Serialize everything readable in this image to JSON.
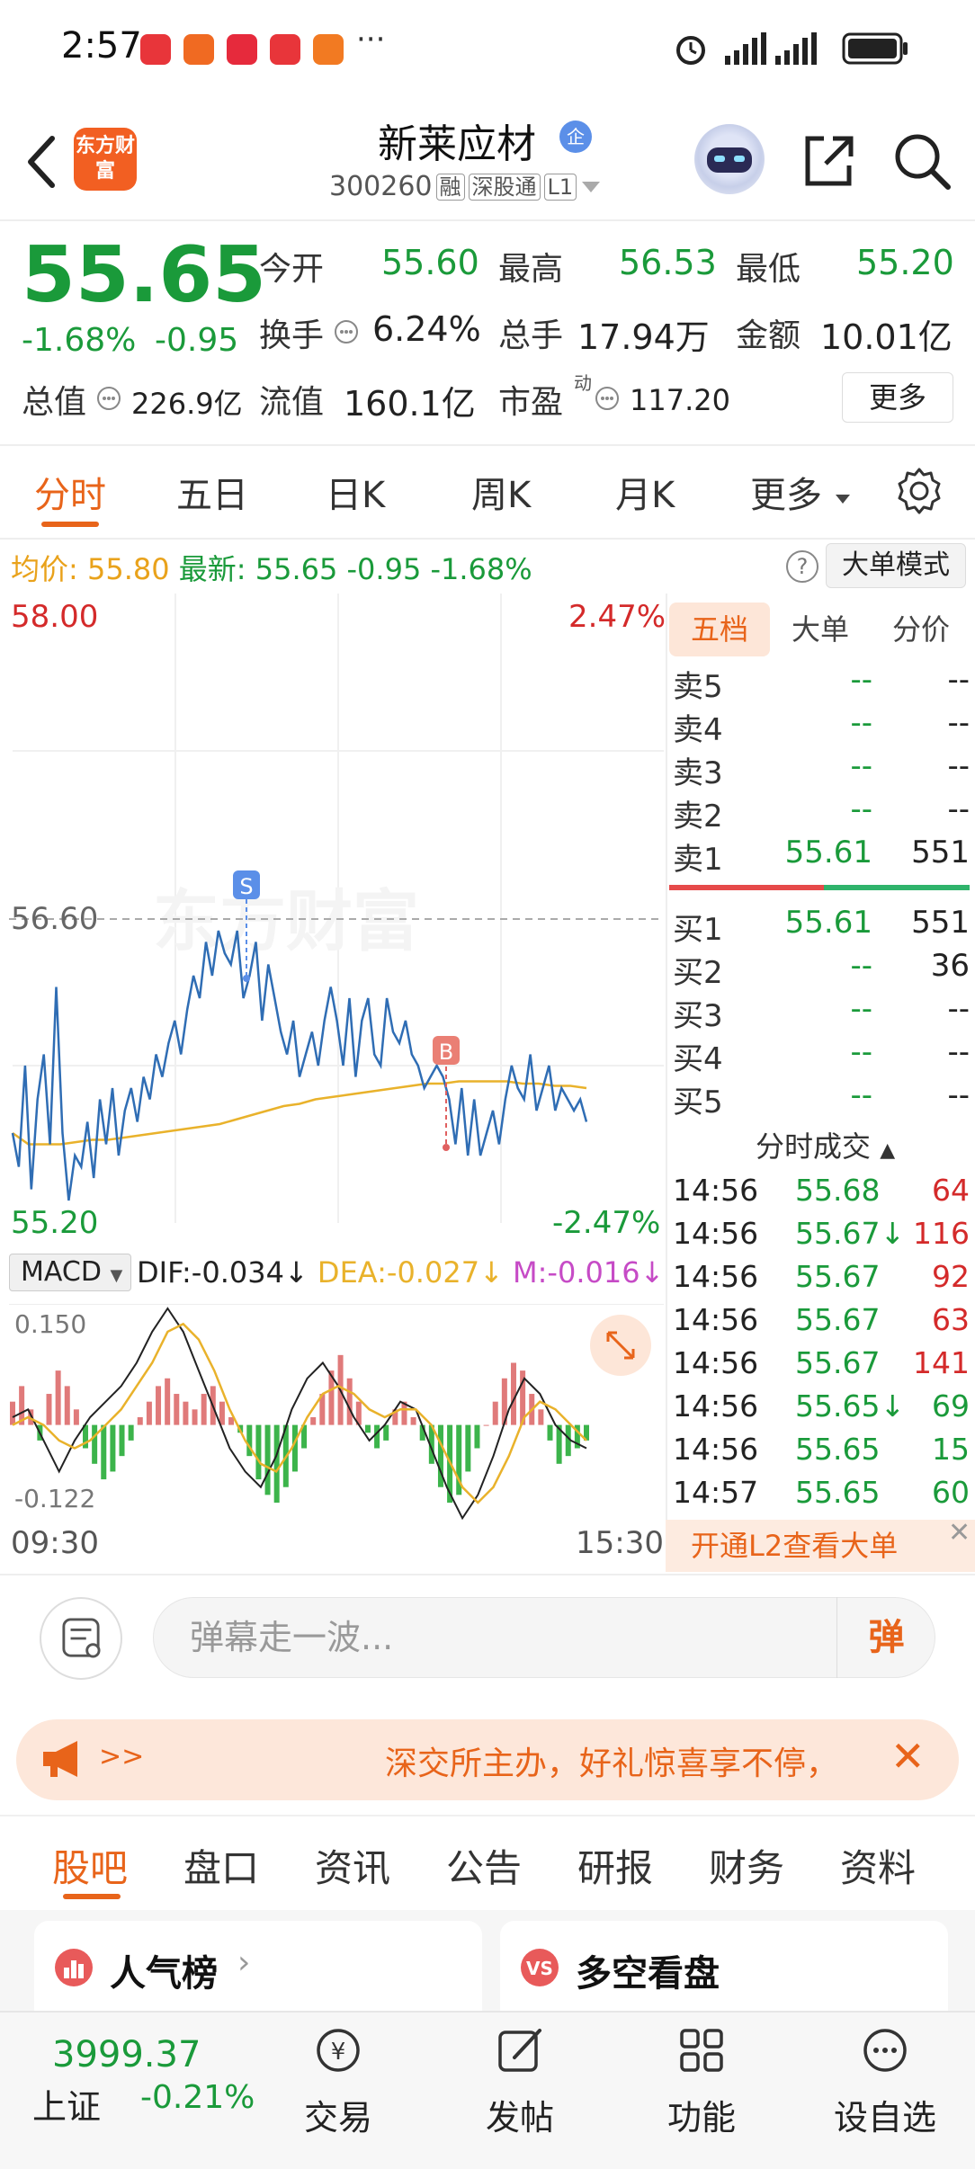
{
  "status_bar": {
    "time": "2:57",
    "more": "···"
  },
  "header": {
    "logo_text": "东方财富",
    "stock_name": "新莱应材",
    "badge": "企",
    "code": "300260",
    "tags": [
      "融",
      "深股通",
      "L1"
    ]
  },
  "quote": {
    "price": "55.65",
    "change_pct": "-1.68%",
    "change": "-0.95",
    "fields": [
      {
        "label": "今开",
        "value": "55.60",
        "color": "green"
      },
      {
        "label": "最高",
        "value": "56.53",
        "color": "green"
      },
      {
        "label": "最低",
        "value": "55.20",
        "color": "green"
      },
      {
        "label": "换手",
        "value": "6.24%",
        "color": "black"
      },
      {
        "label": "总手",
        "value": "17.94万",
        "color": "black"
      },
      {
        "label": "金额",
        "value": "10.01亿",
        "color": "black"
      },
      {
        "label": "总值",
        "value": "226.9亿",
        "color": "black"
      },
      {
        "label": "流值",
        "value": "160.1亿",
        "color": "black"
      },
      {
        "label": "市盈",
        "value": "117.20",
        "color": "black"
      }
    ],
    "pe_superscript": "动",
    "more_label": "更多"
  },
  "chart_tabs": [
    "分时",
    "五日",
    "日K",
    "周K",
    "月K",
    "更多"
  ],
  "info_line": {
    "avg_label": "均价:",
    "avg_value": "55.80",
    "latest_label": "最新:",
    "latest_value": "55.65",
    "change": "-0.95",
    "change_pct": "-1.68%",
    "big_order_label": "大单模式"
  },
  "chart_data": {
    "type": "line",
    "y_max_label": "58.00",
    "y_min_label": "55.20",
    "ref_label": "56.60",
    "pct_max_label": "2.47%",
    "pct_min_label": "-2.47%",
    "x_start_label": "09:30",
    "x_end_label": "15:30",
    "watermark": "东方财富",
    "marker_sell": "S",
    "marker_buy": "B",
    "price_series": [
      55.6,
      55.45,
      55.9,
      55.35,
      55.75,
      55.95,
      55.55,
      56.25,
      55.6,
      55.3,
      55.5,
      55.45,
      55.65,
      55.4,
      55.75,
      55.55,
      55.8,
      55.5,
      55.7,
      55.8,
      55.65,
      55.85,
      55.75,
      55.95,
      55.85,
      56.0,
      56.1,
      55.95,
      56.15,
      56.3,
      56.2,
      56.45,
      56.3,
      56.5,
      56.4,
      56.35,
      56.5,
      56.2,
      56.3,
      56.45,
      56.1,
      56.35,
      56.2,
      56.05,
      55.95,
      56.1,
      55.85,
      55.95,
      56.05,
      55.9,
      56.1,
      56.25,
      56.1,
      55.9,
      56.2,
      55.85,
      56.1,
      56.2,
      55.95,
      55.9,
      56.2,
      56.05,
      56.0,
      56.1,
      55.95,
      55.9,
      55.8,
      55.85,
      55.9,
      55.85,
      55.75,
      55.55,
      55.8,
      55.5,
      55.75,
      55.5,
      55.6,
      55.7,
      55.55,
      55.75,
      55.9,
      55.8,
      55.75,
      55.95,
      55.7,
      55.8,
      55.9,
      55.7,
      55.8,
      55.75,
      55.7,
      55.75,
      55.65
    ],
    "avg_series": [
      55.6,
      55.55,
      55.55,
      55.55,
      55.56,
      55.57,
      55.57,
      55.58,
      55.59,
      55.6,
      55.61,
      55.62,
      55.63,
      55.64,
      55.66,
      55.68,
      55.7,
      55.72,
      55.73,
      55.75,
      55.76,
      55.77,
      55.78,
      55.79,
      55.8,
      55.81,
      55.82,
      55.82,
      55.83,
      55.83,
      55.83,
      55.83,
      55.82,
      55.82,
      55.81,
      55.81,
      55.8
    ],
    "macd_legend": {
      "name": "MACD",
      "dif": "DIF:-0.034",
      "dea": "DEA:-0.027",
      "m": "M:-0.016"
    },
    "macd_max_label": "0.150",
    "macd_min_label": "-0.122",
    "macd_hist": [
      0.03,
      0.05,
      0.02,
      -0.02,
      0.04,
      0.07,
      0.05,
      0.02,
      -0.03,
      -0.05,
      -0.07,
      -0.06,
      -0.04,
      -0.02,
      0.01,
      0.03,
      0.05,
      0.06,
      0.04,
      0.03,
      0.02,
      0.04,
      0.05,
      0.03,
      0.01,
      -0.01,
      -0.04,
      -0.07,
      -0.09,
      -0.1,
      -0.08,
      -0.06,
      -0.03,
      0.01,
      0.04,
      0.07,
      0.09,
      0.06,
      0.03,
      -0.01,
      -0.03,
      -0.02,
      0.02,
      0.03,
      0.01,
      -0.02,
      -0.05,
      -0.08,
      -0.1,
      -0.09,
      -0.06,
      -0.03,
      0.0,
      0.03,
      0.06,
      0.08,
      0.07,
      0.04,
      0.02,
      -0.02,
      -0.05,
      -0.04,
      -0.03,
      -0.02
    ],
    "dif_series": [
      0.01,
      0.02,
      -0.02,
      -0.06,
      -0.02,
      0.01,
      0.03,
      0.05,
      0.08,
      0.12,
      0.15,
      0.12,
      0.07,
      0.02,
      -0.03,
      -0.06,
      -0.08,
      -0.04,
      0.02,
      0.06,
      0.08,
      0.05,
      0.01,
      -0.02,
      0.0,
      0.03,
      0.02,
      -0.03,
      -0.08,
      -0.12,
      -0.09,
      -0.04,
      0.02,
      0.06,
      0.04,
      0.0,
      -0.02,
      -0.03
    ],
    "dea_series": [
      0.0,
      0.01,
      0.0,
      -0.02,
      -0.03,
      -0.02,
      0.0,
      0.02,
      0.05,
      0.08,
      0.12,
      0.13,
      0.11,
      0.07,
      0.02,
      -0.02,
      -0.05,
      -0.06,
      -0.03,
      0.01,
      0.04,
      0.05,
      0.04,
      0.02,
      0.01,
      0.02,
      0.02,
      0.0,
      -0.04,
      -0.08,
      -0.1,
      -0.08,
      -0.04,
      0.01,
      0.03,
      0.02,
      0.0,
      -0.02
    ]
  },
  "order_book": {
    "tabs": [
      "五档",
      "大单",
      "分价"
    ],
    "asks": [
      {
        "label": "卖5",
        "price": "--",
        "vol": "--"
      },
      {
        "label": "卖4",
        "price": "--",
        "vol": "--"
      },
      {
        "label": "卖3",
        "price": "--",
        "vol": "--"
      },
      {
        "label": "卖2",
        "price": "--",
        "vol": "--"
      },
      {
        "label": "卖1",
        "price": "55.61",
        "vol": "551"
      }
    ],
    "bids": [
      {
        "label": "买1",
        "price": "55.61",
        "vol": "551"
      },
      {
        "label": "买2",
        "price": "--",
        "vol": "36"
      },
      {
        "label": "买3",
        "price": "--",
        "vol": "--"
      },
      {
        "label": "买4",
        "price": "--",
        "vol": "--"
      },
      {
        "label": "买5",
        "price": "--",
        "vol": "--"
      }
    ],
    "ticks_title": "分时成交",
    "ticks": [
      {
        "time": "14:56",
        "price": "55.68",
        "vol": "64",
        "dir": "up"
      },
      {
        "time": "14:56",
        "price": "55.67↓",
        "vol": "116",
        "dir": "up"
      },
      {
        "time": "14:56",
        "price": "55.67",
        "vol": "92",
        "dir": "up"
      },
      {
        "time": "14:56",
        "price": "55.67",
        "vol": "63",
        "dir": "up"
      },
      {
        "time": "14:56",
        "price": "55.67",
        "vol": "141",
        "dir": "up"
      },
      {
        "time": "14:56",
        "price": "55.65↓",
        "vol": "69",
        "dir": "down"
      },
      {
        "time": "14:56",
        "price": "55.65",
        "vol": "15",
        "dir": "down"
      },
      {
        "time": "14:57",
        "price": "55.65",
        "vol": "60",
        "dir": "down"
      }
    ],
    "l2_banner": "开通L2查看大单"
  },
  "comment": {
    "placeholder": "弹幕走一波...",
    "button": "弹"
  },
  "promo": {
    "arrows": ">>",
    "text": "深交所主办，好礼惊喜享不停，"
  },
  "section_tabs": [
    "股吧",
    "盘口",
    "资讯",
    "公告",
    "研报",
    "财务",
    "资料"
  ],
  "cards": [
    {
      "title": "人气榜"
    },
    {
      "title": "多空看盘"
    }
  ],
  "bottom_nav": {
    "index_value": "3999.37",
    "index_name": "上证",
    "index_change": "-0.21%",
    "items": [
      "交易",
      "发帖",
      "功能",
      "设自选"
    ]
  },
  "colors": {
    "accent": "#e8641a",
    "down": "#1a9a3a",
    "up": "#d42a2a",
    "price_line": "#2f6db4",
    "avg_line": "#e9b22b"
  }
}
